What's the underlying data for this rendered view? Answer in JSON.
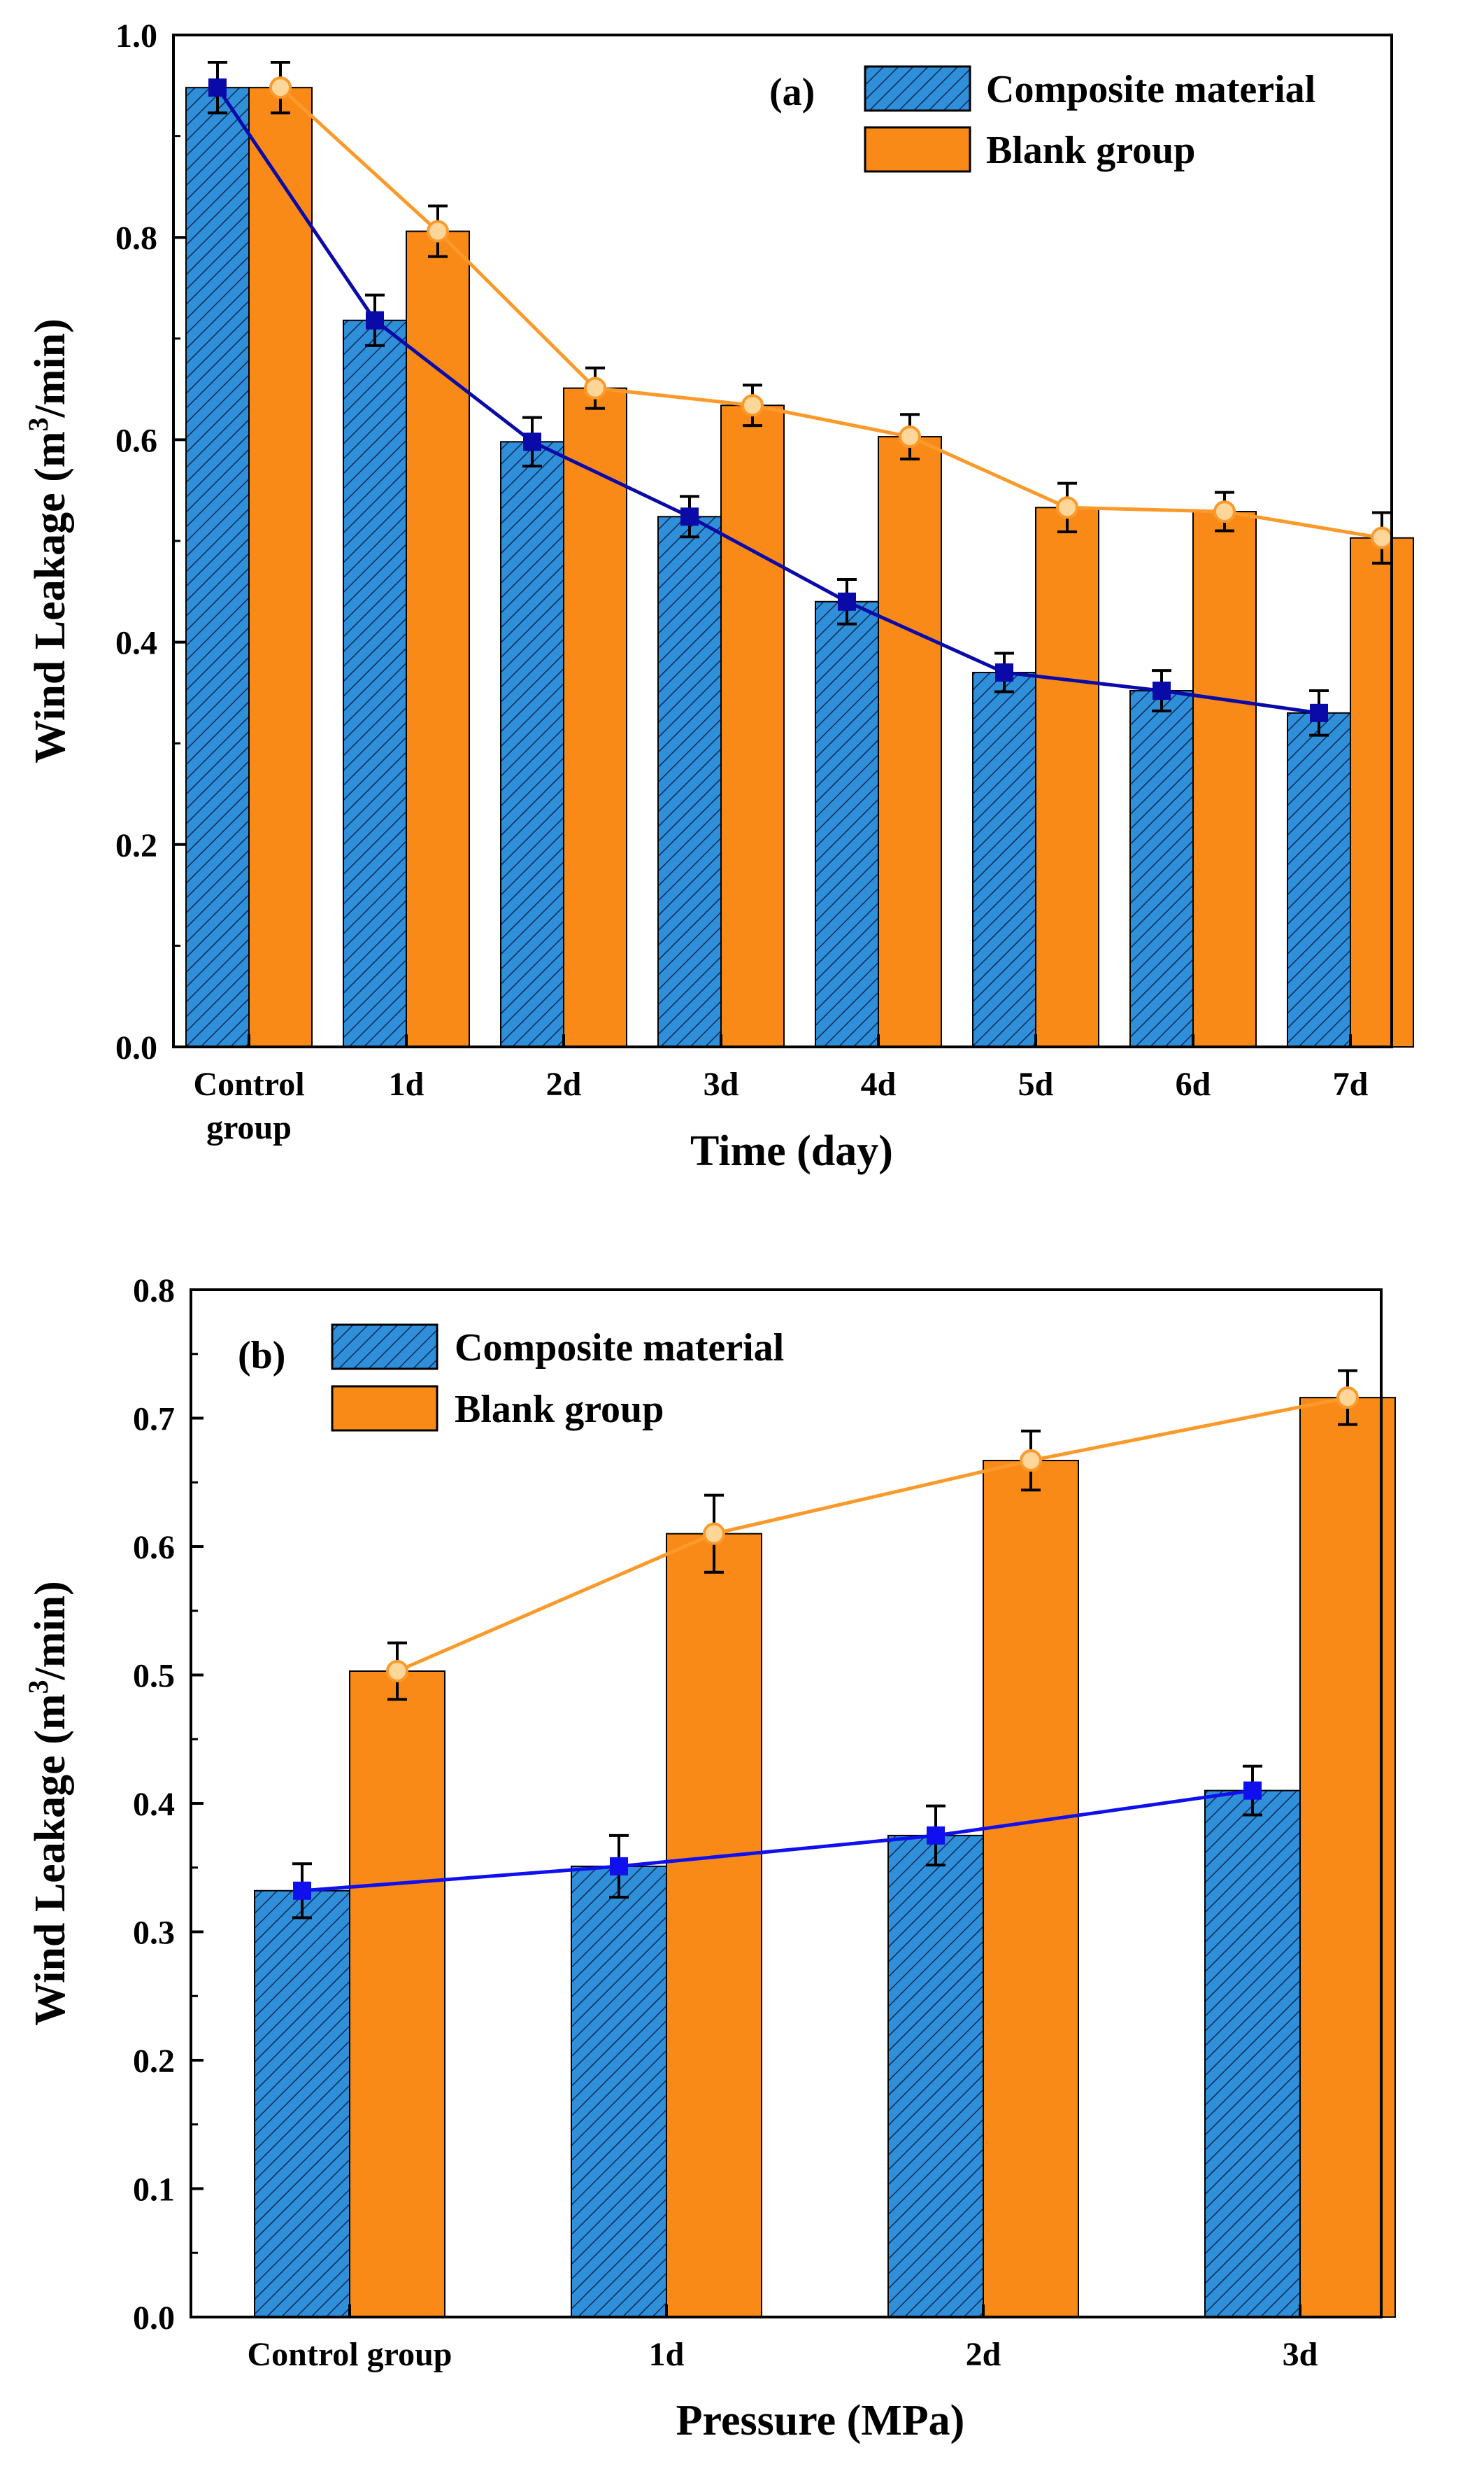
{
  "colors": {
    "composite_bar": "#2f8fd8",
    "composite_line": "#0a0aa8",
    "composite_line_b": "#1010ee",
    "blank_bar": "#f98a18",
    "blank_line": "#fb9a2a",
    "hatch": "#0b2a5a"
  },
  "chart_data": [
    {
      "type": "bar",
      "panel_label": "(a)",
      "title": "",
      "xlabel": "Time (day)",
      "ylabel_main": "Wind Leakage (m",
      "ylabel_sup": "3",
      "ylabel_tail": "/min)",
      "ylim": [
        0,
        1.0
      ],
      "yticks": [
        "0.0",
        "0.2",
        "0.4",
        "0.6",
        "0.8",
        "1.0"
      ],
      "ytick_values": [
        0,
        0.2,
        0.4,
        0.6,
        0.8,
        1.0
      ],
      "categories": [
        {
          "line1": "Control",
          "line2": "group"
        },
        {
          "line1": "1d",
          "line2": ""
        },
        {
          "line1": "2d",
          "line2": ""
        },
        {
          "line1": "3d",
          "line2": ""
        },
        {
          "line1": "4d",
          "line2": ""
        },
        {
          "line1": "5d",
          "line2": ""
        },
        {
          "line1": "6d",
          "line2": ""
        },
        {
          "line1": "7d",
          "line2": ""
        }
      ],
      "legend_position": "top-right",
      "series": [
        {
          "name": "Composite material",
          "values": [
            0.948,
            0.718,
            0.598,
            0.524,
            0.44,
            0.37,
            0.352,
            0.33
          ],
          "errors": [
            0.025,
            0.025,
            0.024,
            0.02,
            0.022,
            0.019,
            0.02,
            0.022
          ]
        },
        {
          "name": "Blank group",
          "values": [
            0.948,
            0.806,
            0.651,
            0.634,
            0.603,
            0.533,
            0.529,
            0.503
          ],
          "errors": [
            0.025,
            0.025,
            0.02,
            0.02,
            0.022,
            0.024,
            0.019,
            0.025
          ]
        }
      ]
    },
    {
      "type": "bar",
      "panel_label": "(b)",
      "title": "",
      "xlabel": "Pressure (MPa)",
      "ylabel_main": "Wind Leakage (m",
      "ylabel_sup": "3",
      "ylabel_tail": "/min)",
      "ylim": [
        0,
        0.8
      ],
      "yticks": [
        "0.0",
        "0.1",
        "0.2",
        "0.3",
        "0.4",
        "0.5",
        "0.6",
        "0.7",
        "0.8"
      ],
      "ytick_values": [
        0,
        0.1,
        0.2,
        0.3,
        0.4,
        0.5,
        0.6,
        0.7,
        0.8
      ],
      "categories": [
        {
          "line1": "Control group",
          "line2": ""
        },
        {
          "line1": "1d",
          "line2": ""
        },
        {
          "line1": "2d",
          "line2": ""
        },
        {
          "line1": "3d",
          "line2": ""
        }
      ],
      "legend_position": "top-left",
      "series": [
        {
          "name": "Composite material",
          "values": [
            0.332,
            0.351,
            0.375,
            0.41
          ],
          "errors": [
            0.021,
            0.024,
            0.023,
            0.019
          ]
        },
        {
          "name": "Blank group",
          "values": [
            0.503,
            0.61,
            0.667,
            0.716
          ],
          "errors": [
            0.022,
            0.03,
            0.023,
            0.021
          ]
        }
      ]
    }
  ]
}
